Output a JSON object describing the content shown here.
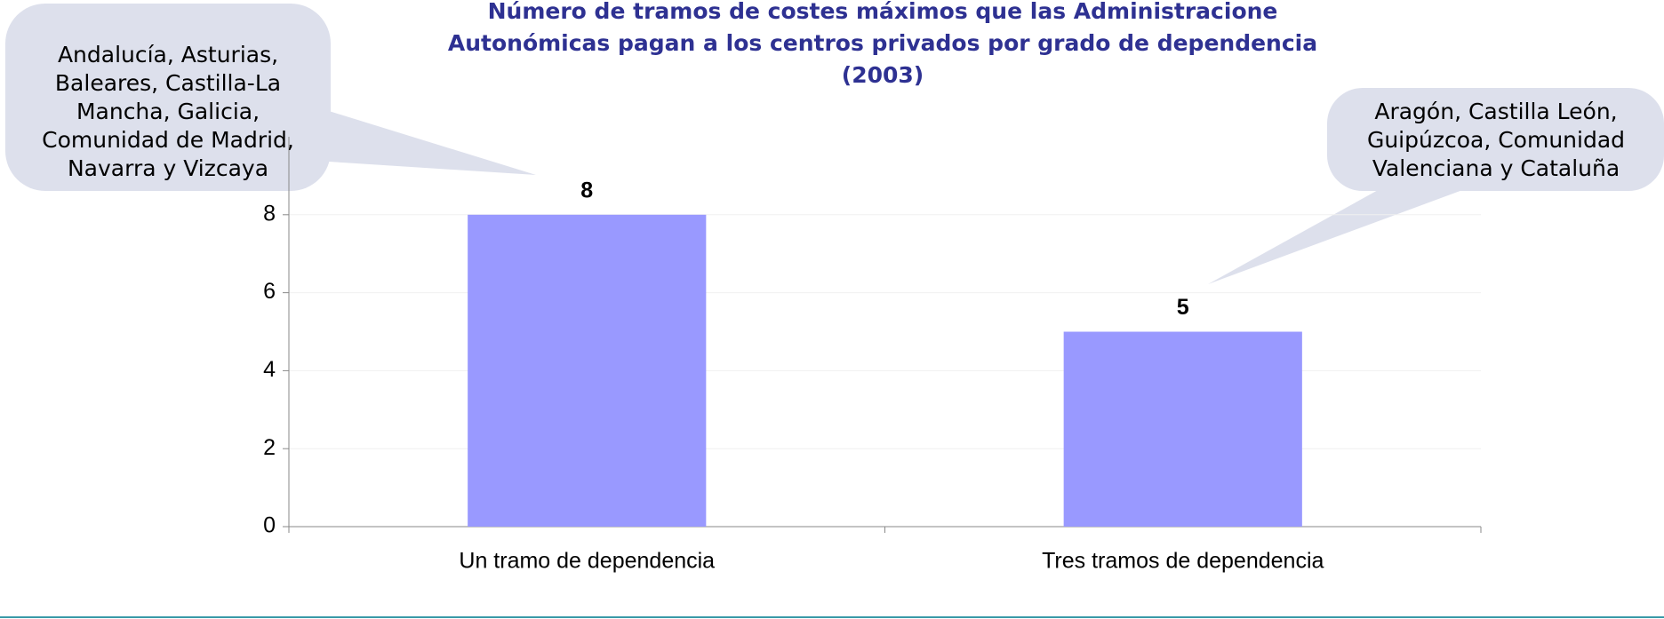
{
  "chart_data": {
    "type": "bar",
    "title": [
      "Número de tramos de costes máximos que las Administracione",
      "Autonómicas pagan a los centros privados por grado de dependencia",
      "(2003)"
    ],
    "categories": [
      "Un tramo de dependencia",
      "Tres tramos de dependencia"
    ],
    "values": [
      8,
      5
    ],
    "color": "#9999ff",
    "ylim": [
      0,
      10
    ],
    "yticks": [
      0,
      2,
      4,
      6,
      8
    ],
    "grid": true,
    "annotations": [
      {
        "lines": [
          "Andalucía, Asturias,",
          "Baleares, Castilla-La",
          "Mancha, Galicia,",
          "Comunidad de Madrid,",
          "Navarra y Vizcaya"
        ]
      },
      {
        "lines": [
          "Aragón, Castilla León,",
          "Guipúzcoa, Comunidad",
          "Valenciana y Cataluña"
        ]
      }
    ]
  }
}
